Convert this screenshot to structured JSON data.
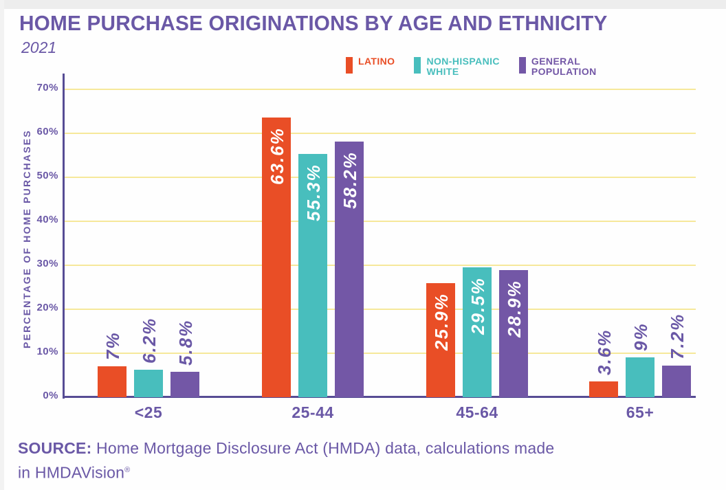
{
  "title": "HOME PURCHASE ORIGINATIONS BY AGE AND ETHNICITY",
  "subtitle": "2021",
  "colors": {
    "text": "#6A58A6",
    "axis": "#564C94",
    "grid": "#F6E89A",
    "inside_label": "#FFFFFF"
  },
  "chart_data": {
    "type": "bar",
    "title": "HOME PURCHASE ORIGINATIONS BY AGE AND ETHNICITY",
    "subtitle": "2021",
    "categories": [
      "<25",
      "25-44",
      "45-64",
      "65+"
    ],
    "series": [
      {
        "name": "Latino",
        "legend_label": "LATINO",
        "color": "#E94E26",
        "values": [
          7,
          63.6,
          25.9,
          3.6
        ],
        "display": [
          "7%",
          "63.6%",
          "25.9%",
          "3.6%"
        ]
      },
      {
        "name": "Non-Hispanic White",
        "legend_label": "NON-HISPANIC\nWHITE",
        "color": "#48BEBD",
        "values": [
          6.2,
          55.3,
          29.5,
          9
        ],
        "display": [
          "6.2%",
          "55.3%",
          "29.5%",
          "9%"
        ]
      },
      {
        "name": "General Population",
        "legend_label": "GENERAL\nPOPULATION",
        "color": "#7357A6",
        "values": [
          5.8,
          58.2,
          28.9,
          7.2
        ],
        "display": [
          "5.8%",
          "58.2%",
          "28.9%",
          "7.2%"
        ]
      }
    ],
    "xlabel": "",
    "ylabel": "PERCENTAGE OF HOME PURCHASES",
    "ylim": [
      0,
      70
    ],
    "ytick_step": 10,
    "yticks": [
      "0%",
      "10%",
      "20%",
      "30%",
      "40%",
      "50%",
      "60%",
      "70%"
    ],
    "grid": "horizontal",
    "legend_position": "top"
  },
  "source": {
    "label": "SOURCE:",
    "line1": " Home Mortgage Disclosure Act (HMDA) data, calculations made",
    "line2": "in HMDAVision",
    "registered": "®"
  }
}
